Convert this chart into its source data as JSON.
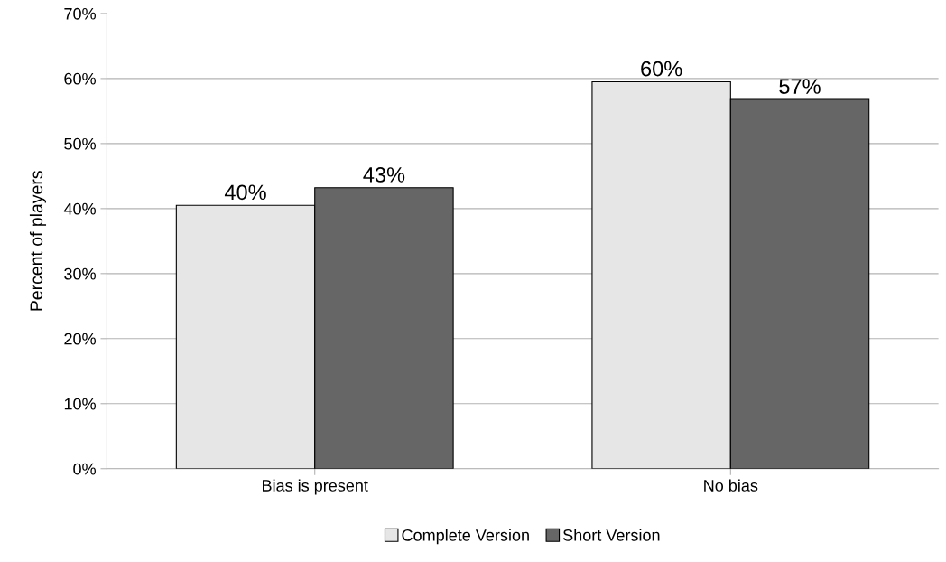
{
  "chart_data": {
    "type": "bar",
    "ylabel": "Percent of players",
    "categories": [
      "Bias is present",
      "No bias"
    ],
    "series": [
      {
        "name": "Complete Version",
        "color": "#e6e6e6",
        "values": [
          40.5,
          59.5
        ],
        "value_labels": [
          "40%",
          "60%"
        ]
      },
      {
        "name": "Short Version",
        "color": "#666666",
        "values": [
          43.2,
          56.8
        ],
        "value_labels": [
          "43%",
          "57%"
        ]
      }
    ],
    "ylim": [
      0,
      70
    ],
    "yticks": [
      {
        "value": 0,
        "label": "0%"
      },
      {
        "value": 10,
        "label": "10%"
      },
      {
        "value": 20,
        "label": "20%"
      },
      {
        "value": 30,
        "label": "30%"
      },
      {
        "value": 40,
        "label": "40%"
      },
      {
        "value": 50,
        "label": "50%"
      },
      {
        "value": 60,
        "label": "60%"
      },
      {
        "value": 70,
        "label": "70%"
      }
    ],
    "grid": "y",
    "legend": "bottom"
  }
}
